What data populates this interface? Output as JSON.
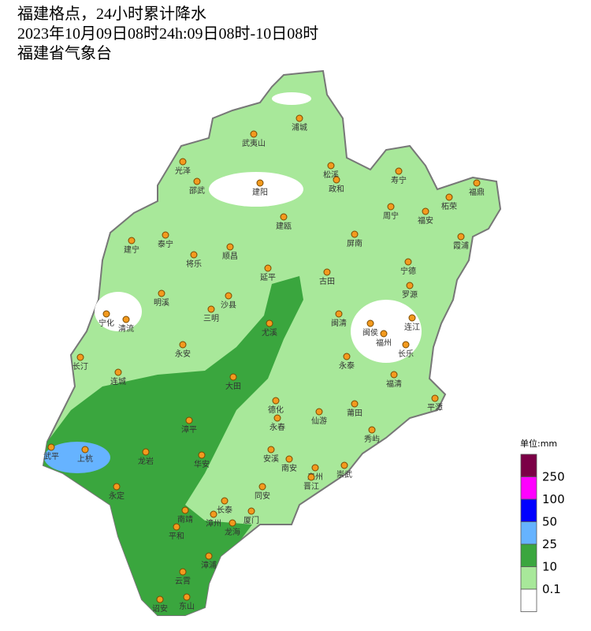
{
  "header": {
    "lines": [
      "福建格点，24小时累计降水",
      "2023年10月09日08时24h:09日08时-10日08时",
      "福建省气象台"
    ]
  },
  "cities": [
    "浦城",
    "武夷山",
    "光泽",
    "松溪",
    "寿宁",
    "政和",
    "邵武",
    "建阳",
    "福鼎",
    "柘荣",
    "周宁",
    "福安",
    "建瓯",
    "泰宁",
    "屏南",
    "霞浦",
    "建宁",
    "顺昌",
    "将乐",
    "宁德",
    "延平",
    "古田",
    "罗源",
    "明溪",
    "沙县",
    "宁化",
    "清流",
    "三明",
    "闽清",
    "连江",
    "尤溪",
    "闽侯",
    "福州",
    "永安",
    "长乐",
    "永泰",
    "长汀",
    "福清",
    "连城",
    "大田",
    "平潭",
    "德化",
    "莆田",
    "永春",
    "仙游",
    "漳平",
    "秀屿",
    "武平",
    "上杭",
    "龙岩",
    "华安",
    "安溪",
    "南安",
    "泉州",
    "崇武",
    "晋江",
    "永定",
    "同安",
    "长泰",
    "南靖",
    "漳州",
    "厦门",
    "龙海",
    "平和",
    "漳浦",
    "云霄",
    "诏安",
    "东山"
  ],
  "legend": {
    "unit": "单位:mm",
    "levels": [
      250,
      100,
      50,
      25,
      10,
      0.1
    ],
    "colors": [
      "#7b0046",
      "#ff00ff",
      "#0000ff",
      "#66b3ff",
      "#3aa63e",
      "#a8e89a",
      "#ffffff"
    ]
  }
}
